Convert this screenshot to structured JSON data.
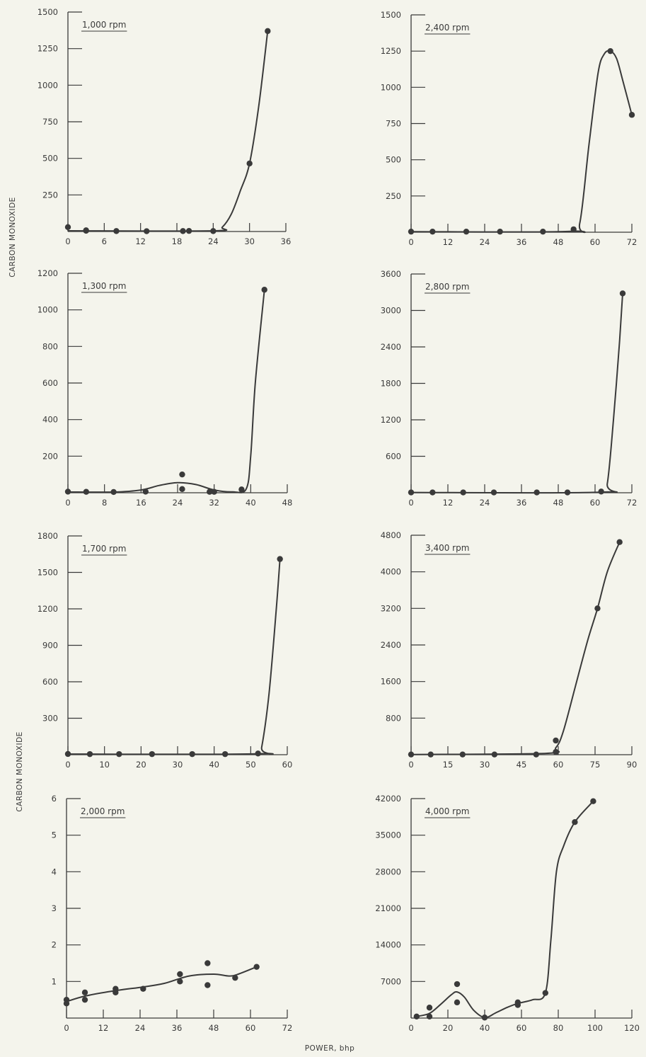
{
  "labels": {
    "ylabel_top": "CARBON MONOXIDE",
    "ylabel_bottom": "CARBON MONOXIDE",
    "xlabel": "POWER, bhp"
  },
  "colors": {
    "ink": "#3a3a3a",
    "background": "#f4f4ec"
  },
  "chart_data": [
    {
      "type": "line",
      "title": "1,000 rpm",
      "xlabel": "",
      "ylabel": "CARBON MONOXIDE",
      "xlim": [
        0,
        36
      ],
      "ylim": [
        0,
        1500
      ],
      "xticks": [
        0,
        6,
        12,
        18,
        24,
        30,
        36
      ],
      "xtick_labels": [
        "0",
        "6",
        "12",
        "18",
        "24",
        "30",
        "36"
      ],
      "yticks": [
        250,
        500,
        750,
        1000,
        1250,
        1500
      ],
      "ytick_labels": [
        "250",
        "500",
        "750",
        "1000",
        "1250",
        "1500"
      ],
      "points": [
        [
          0,
          30
        ],
        [
          3,
          5
        ],
        [
          3,
          8
        ],
        [
          8,
          3
        ],
        [
          13,
          2
        ],
        [
          19,
          3
        ],
        [
          20,
          4
        ],
        [
          24,
          3
        ],
        [
          30,
          465
        ],
        [
          33,
          1370
        ]
      ],
      "curve": [
        [
          0,
          5
        ],
        [
          24,
          5
        ],
        [
          25.5,
          30
        ],
        [
          27,
          120
        ],
        [
          28.5,
          280
        ],
        [
          30,
          465
        ],
        [
          31.5,
          850
        ],
        [
          33,
          1370
        ]
      ]
    },
    {
      "type": "line",
      "title": "2,400 rpm",
      "xlabel": "",
      "ylabel": "CARBON MONOXIDE",
      "xlim": [
        0,
        72
      ],
      "ylim": [
        0,
        1500
      ],
      "xticks": [
        0,
        12,
        24,
        36,
        48,
        60,
        72
      ],
      "xtick_labels": [
        "0",
        "12",
        "24",
        "36",
        "48",
        "60",
        "72"
      ],
      "yticks": [
        250,
        500,
        750,
        1000,
        1250,
        1500
      ],
      "ytick_labels": [
        "250",
        "500",
        "750",
        "1000",
        "1250",
        "1500"
      ],
      "points": [
        [
          0,
          4
        ],
        [
          7,
          4
        ],
        [
          18,
          4
        ],
        [
          29,
          4
        ],
        [
          43,
          4
        ],
        [
          53,
          20
        ],
        [
          65,
          1250
        ],
        [
          72,
          810
        ]
      ],
      "curve": [
        [
          0,
          4
        ],
        [
          52,
          6
        ],
        [
          55,
          60
        ],
        [
          58,
          600
        ],
        [
          61,
          1100
        ],
        [
          63,
          1230
        ],
        [
          65,
          1250
        ],
        [
          67,
          1200
        ],
        [
          69,
          1050
        ],
        [
          72,
          810
        ]
      ]
    },
    {
      "type": "line",
      "title": "1,300 rpm",
      "xlabel": "",
      "ylabel": "CARBON MONOXIDE",
      "xlim": [
        0,
        48
      ],
      "ylim": [
        0,
        1200
      ],
      "xticks": [
        0,
        8,
        16,
        24,
        32,
        40,
        48
      ],
      "xtick_labels": [
        "0",
        "8",
        "16",
        "24",
        "32",
        "40",
        "48"
      ],
      "yticks": [
        200,
        400,
        600,
        800,
        1000,
        1200
      ],
      "ytick_labels": [
        "200",
        "400",
        "600",
        "800",
        "1000",
        "1200"
      ],
      "points": [
        [
          0,
          6
        ],
        [
          4,
          5
        ],
        [
          10,
          4
        ],
        [
          17,
          6
        ],
        [
          25,
          100
        ],
        [
          25,
          20
        ],
        [
          31,
          5
        ],
        [
          32,
          5
        ],
        [
          38,
          18
        ],
        [
          43,
          1110
        ]
      ],
      "curve": [
        [
          0,
          4
        ],
        [
          10,
          4
        ],
        [
          16,
          15
        ],
        [
          20,
          40
        ],
        [
          24,
          55
        ],
        [
          28,
          45
        ],
        [
          32,
          15
        ],
        [
          36,
          5
        ],
        [
          39,
          20
        ],
        [
          40,
          200
        ],
        [
          41,
          600
        ],
        [
          43,
          1110
        ]
      ]
    },
    {
      "type": "line",
      "title": "2,800 rpm",
      "xlabel": "",
      "ylabel": "CARBON MONOXIDE",
      "xlim": [
        0,
        72
      ],
      "ylim": [
        0,
        3600
      ],
      "xticks": [
        0,
        12,
        24,
        36,
        48,
        60,
        72
      ],
      "xtick_labels": [
        "0",
        "12",
        "24",
        "36",
        "48",
        "60",
        "72"
      ],
      "yticks": [
        600,
        1200,
        1800,
        2400,
        3000,
        3600
      ],
      "ytick_labels": [
        "600",
        "1200",
        "1800",
        "2400",
        "3000",
        "3600"
      ],
      "points": [
        [
          0,
          5
        ],
        [
          7,
          5
        ],
        [
          17,
          5
        ],
        [
          27,
          5
        ],
        [
          41,
          5
        ],
        [
          51,
          5
        ],
        [
          62,
          20
        ],
        [
          69,
          3280
        ]
      ],
      "curve": [
        [
          0,
          5
        ],
        [
          62,
          10
        ],
        [
          64,
          150
        ],
        [
          66,
          1200
        ],
        [
          68,
          2500
        ],
        [
          69,
          3280
        ]
      ]
    },
    {
      "type": "line",
      "title": "1,700 rpm",
      "xlabel": "",
      "ylabel": "CARBON MONOXIDE",
      "xlim": [
        0,
        60
      ],
      "ylim": [
        0,
        1800
      ],
      "xticks": [
        0,
        10,
        20,
        30,
        40,
        50,
        60
      ],
      "xtick_labels": [
        "0",
        "10",
        "20",
        "30",
        "40",
        "50",
        "60"
      ],
      "yticks": [
        300,
        600,
        900,
        1200,
        1500,
        1800
      ],
      "ytick_labels": [
        "300",
        "600",
        "900",
        "1200",
        "1500",
        "1800"
      ],
      "points": [
        [
          0,
          6
        ],
        [
          6,
          5
        ],
        [
          14,
          5
        ],
        [
          23,
          5
        ],
        [
          34,
          5
        ],
        [
          43,
          5
        ],
        [
          52,
          10
        ],
        [
          58,
          1610
        ]
      ],
      "curve": [
        [
          0,
          5
        ],
        [
          52,
          8
        ],
        [
          53,
          60
        ],
        [
          55,
          500
        ],
        [
          57,
          1200
        ],
        [
          58,
          1610
        ]
      ]
    },
    {
      "type": "line",
      "title": "3,400 rpm",
      "xlabel": "",
      "ylabel": "CARBON MONOXIDE",
      "xlim": [
        0,
        90
      ],
      "ylim": [
        0,
        4800
      ],
      "xticks": [
        0,
        15,
        30,
        45,
        60,
        75,
        90
      ],
      "xtick_labels": [
        "0",
        "15",
        "30",
        "45",
        "60",
        "75",
        "90"
      ],
      "yticks": [
        800,
        1600,
        2400,
        3200,
        4000,
        4800
      ],
      "ytick_labels": [
        "800",
        "1600",
        "2400",
        "3200",
        "4000",
        "4800"
      ],
      "points": [
        [
          0,
          5
        ],
        [
          8,
          5
        ],
        [
          21,
          5
        ],
        [
          34,
          5
        ],
        [
          51,
          5
        ],
        [
          59,
          310
        ],
        [
          59,
          60
        ],
        [
          76,
          3200
        ],
        [
          85,
          4650
        ]
      ],
      "curve": [
        [
          0,
          5
        ],
        [
          55,
          30
        ],
        [
          59,
          150
        ],
        [
          62,
          500
        ],
        [
          67,
          1500
        ],
        [
          72,
          2500
        ],
        [
          76,
          3200
        ],
        [
          80,
          4000
        ],
        [
          85,
          4650
        ]
      ]
    },
    {
      "type": "line",
      "title": "2,000 rpm",
      "xlabel": "POWER, bhp",
      "ylabel": "CARBON MONOXIDE",
      "xlim": [
        0,
        72
      ],
      "ylim": [
        0,
        6
      ],
      "xticks": [
        0,
        12,
        24,
        36,
        48,
        60,
        72
      ],
      "xtick_labels": [
        "0",
        "12",
        "24",
        "36",
        "48",
        "60",
        "72"
      ],
      "yticks": [
        1,
        2,
        3,
        4,
        5,
        6
      ],
      "ytick_labels": [
        "1",
        "2",
        "3",
        "4",
        "5",
        "6"
      ],
      "points": [
        [
          0,
          0.4
        ],
        [
          0,
          0.5
        ],
        [
          6,
          0.7
        ],
        [
          6,
          0.5
        ],
        [
          16,
          0.8
        ],
        [
          16,
          0.7
        ],
        [
          25,
          0.8
        ],
        [
          37,
          1.2
        ],
        [
          37,
          1.0
        ],
        [
          46,
          1.5
        ],
        [
          46,
          0.9
        ],
        [
          55,
          1.1
        ],
        [
          62,
          1.4
        ]
      ],
      "curve": [
        [
          0,
          0.45
        ],
        [
          6,
          0.6
        ],
        [
          16,
          0.75
        ],
        [
          25,
          0.85
        ],
        [
          32,
          0.95
        ],
        [
          40,
          1.15
        ],
        [
          48,
          1.2
        ],
        [
          53,
          1.15
        ],
        [
          56,
          1.2
        ],
        [
          62,
          1.4
        ]
      ]
    },
    {
      "type": "line",
      "title": "4,000 rpm",
      "xlabel": "POWER, bhp",
      "ylabel": "CARBON MONOXIDE",
      "xlim": [
        0,
        120
      ],
      "ylim": [
        0,
        42000
      ],
      "xticks": [
        0,
        20,
        40,
        60,
        80,
        100,
        120
      ],
      "xtick_labels": [
        "0",
        "20",
        "40",
        "60",
        "80",
        "100",
        "120"
      ],
      "yticks": [
        7000,
        14000,
        21000,
        28000,
        35000,
        42000
      ],
      "ytick_labels": [
        "7000",
        "14000",
        "21000",
        "28000",
        "35000",
        "42000"
      ],
      "points": [
        [
          3,
          300
        ],
        [
          10,
          300
        ],
        [
          10,
          2000
        ],
        [
          25,
          6500
        ],
        [
          25,
          3000
        ],
        [
          40,
          100
        ],
        [
          58,
          3000
        ],
        [
          58,
          2500
        ],
        [
          73,
          4800
        ],
        [
          89,
          37500
        ],
        [
          99,
          41500
        ]
      ],
      "curve": [
        [
          3,
          300
        ],
        [
          10,
          900
        ],
        [
          16,
          2600
        ],
        [
          22,
          4500
        ],
        [
          25,
          5000
        ],
        [
          29,
          4000
        ],
        [
          34,
          1500
        ],
        [
          40,
          100
        ],
        [
          46,
          1000
        ],
        [
          52,
          2000
        ],
        [
          58,
          2800
        ],
        [
          66,
          3500
        ],
        [
          73,
          4800
        ],
        [
          76,
          15000
        ],
        [
          79,
          28000
        ],
        [
          83,
          33000
        ],
        [
          89,
          37500
        ],
        [
          99,
          41500
        ]
      ]
    }
  ]
}
